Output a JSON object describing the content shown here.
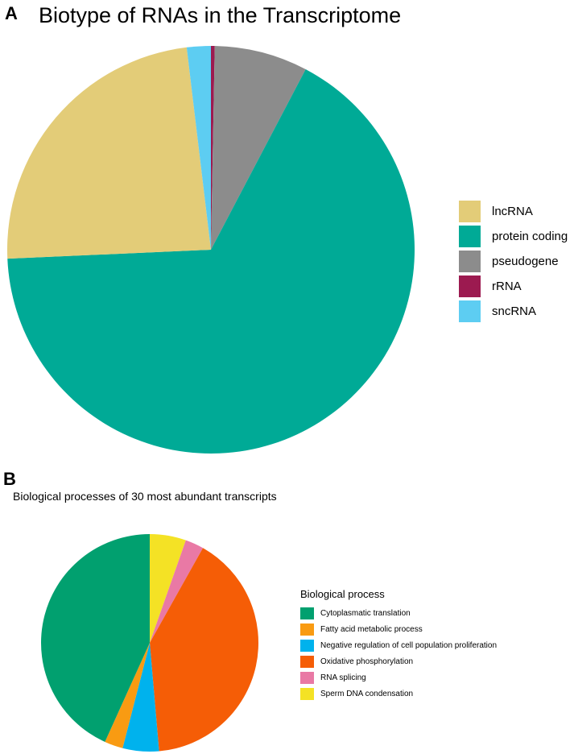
{
  "panel_a": {
    "letter": "A",
    "chart_data": {
      "type": "pie",
      "title": "Biotype of RNAs in the Transcriptome",
      "categories": [
        "lncRNA",
        "protein coding",
        "pseudogene",
        "rRNA",
        "sncRNA"
      ],
      "values": [
        23.8,
        66.6,
        7.4,
        0.3,
        1.9
      ],
      "colors": [
        "#e3cc78",
        "#00aa96",
        "#8c8c8c",
        "#9c1a50",
        "#5dcdf2"
      ],
      "order_clockwise_from_top": [
        "rRNA",
        "pseudogene",
        "protein coding",
        "lncRNA",
        "sncRNA"
      ],
      "legend": {
        "title": "",
        "placement": "right"
      }
    }
  },
  "panel_b": {
    "letter": "B",
    "chart_data": {
      "type": "pie",
      "title": "Biological processes of 30 most abundant transcripts",
      "categories": [
        "Cytoplasmatic translation",
        "Fatty acid metabolic process",
        "Negative regulation of cell population proliferation",
        "Oxidative phosphorylation",
        "RNA splicing",
        "Sperm DNA condensation"
      ],
      "values": [
        42.5,
        2.7,
        5.3,
        39.8,
        2.7,
        5.3
      ],
      "colors": [
        "#01a06f",
        "#f99b12",
        "#00b2ed",
        "#f55d06",
        "#e979a5",
        "#f4e225"
      ],
      "order_clockwise_from_top": [
        "Sperm DNA condensation",
        "RNA splicing",
        "Oxidative phosphorylation",
        "Negative regulation of cell population proliferation",
        "Fatty acid metabolic process",
        "Cytoplasmatic translation"
      ],
      "legend": {
        "title": "Biological  process",
        "placement": "right"
      }
    }
  }
}
